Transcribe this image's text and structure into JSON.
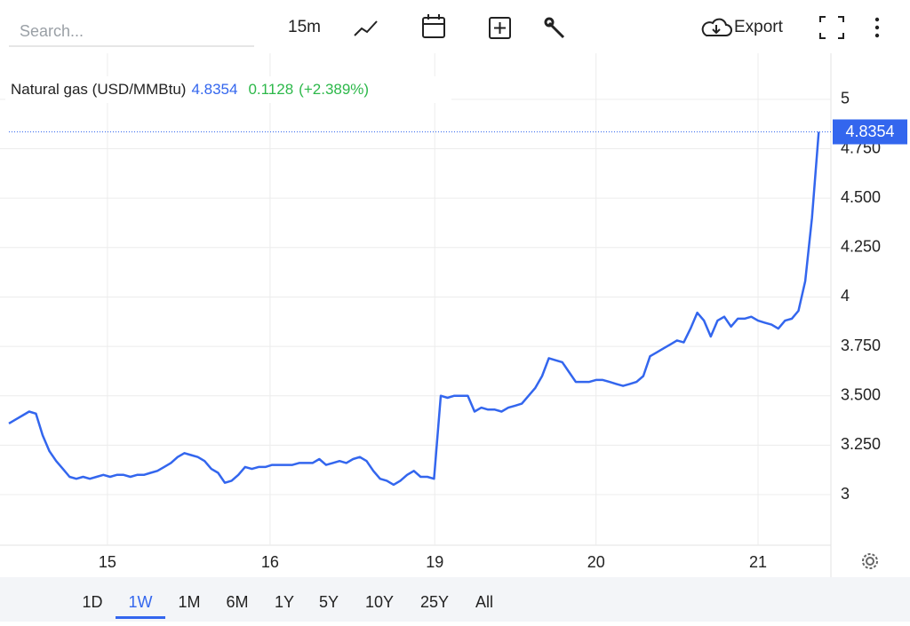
{
  "toolbar": {
    "search_placeholder": "Search...",
    "interval": "15m",
    "export": "Export"
  },
  "chart_data": {
    "type": "line",
    "title": "Natural gas (USD/MMBtu)",
    "change": 0.1128,
    "change_label": "(+2.389%)",
    "series": [
      {
        "name": "Natural gas",
        "color": "#3366ee",
        "values": [
          3.36,
          3.38,
          3.4,
          3.42,
          3.41,
          3.3,
          3.22,
          3.17,
          3.13,
          3.09,
          3.08,
          3.09,
          3.08,
          3.09,
          3.1,
          3.09,
          3.1,
          3.1,
          3.09,
          3.1,
          3.1,
          3.11,
          3.12,
          3.14,
          3.16,
          3.19,
          3.21,
          3.2,
          3.19,
          3.17,
          3.13,
          3.11,
          3.06,
          3.07,
          3.1,
          3.14,
          3.13,
          3.14,
          3.14,
          3.15,
          3.15,
          3.15,
          3.15,
          3.16,
          3.16,
          3.16,
          3.18,
          3.15,
          3.16,
          3.17,
          3.16,
          3.18,
          3.19,
          3.17,
          3.12,
          3.08,
          3.07,
          3.05,
          3.07,
          3.1,
          3.12,
          3.09,
          3.09,
          3.08,
          3.5,
          3.49,
          3.5,
          3.5,
          3.5,
          3.42,
          3.44,
          3.43,
          3.43,
          3.42,
          3.44,
          3.45,
          3.46,
          3.5,
          3.54,
          3.6,
          3.69,
          3.68,
          3.67,
          3.62,
          3.57,
          3.57,
          3.57,
          3.58,
          3.58,
          3.57,
          3.56,
          3.55,
          3.56,
          3.57,
          3.6,
          3.7,
          3.72,
          3.74,
          3.76,
          3.78,
          3.77,
          3.84,
          3.92,
          3.88,
          3.8,
          3.88,
          3.9,
          3.85,
          3.89,
          3.89,
          3.9,
          3.88,
          3.87,
          3.86,
          3.84,
          3.88,
          3.89,
          3.93,
          4.08,
          4.4,
          4.8354
        ]
      }
    ],
    "xlim": [
      0,
      121.8
    ],
    "xticks": [
      {
        "value": 14.6,
        "label": "15"
      },
      {
        "value": 38.7,
        "label": "16"
      },
      {
        "value": 63.1,
        "label": "19"
      },
      {
        "value": 87.0,
        "label": "20"
      },
      {
        "value": 111.0,
        "label": "21"
      }
    ],
    "ylim": [
      2.744,
      5.233
    ],
    "yticks": [
      3,
      {
        "value": 3.25,
        "label": "3.250"
      },
      {
        "value": 3.5,
        "label": "3.500"
      },
      {
        "value": 3.75,
        "label": "3.750"
      },
      4,
      {
        "value": 4.25,
        "label": "4.250"
      },
      {
        "value": 4.5,
        "label": "4.500"
      },
      {
        "value": 4.75,
        "label": "4.750"
      },
      5
    ],
    "grid": true
  },
  "ranges": [
    "1D",
    "1W",
    "1M",
    "6M",
    "1Y",
    "5Y",
    "10Y",
    "25Y",
    "All"
  ],
  "active_range": "1W"
}
